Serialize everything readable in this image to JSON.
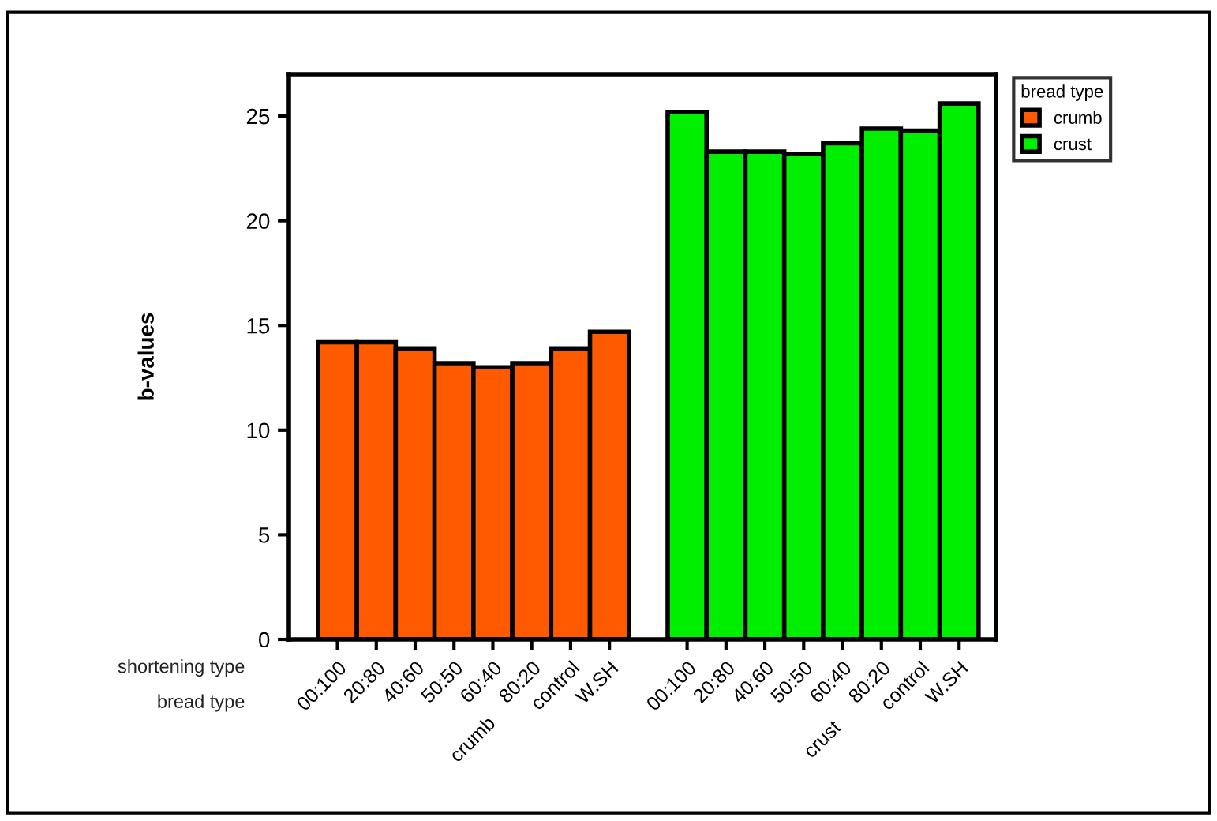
{
  "chart_data": {
    "type": "bar",
    "ylabel": "b-values",
    "legend_title": "bread type",
    "legend": "top right",
    "categories": [
      "00:100",
      "20:80",
      "40:60",
      "50:50",
      "60:40",
      "80:20",
      "control",
      "W.SH",
      null,
      "00:100",
      "20:80",
      "40:60",
      "50:50",
      "60:40",
      "80:20",
      "control",
      "W.SH"
    ],
    "series": [
      {
        "name": "crumb",
        "color": "#ff5a00",
        "values": [
          14.2,
          14.2,
          13.9,
          13.2,
          13.0,
          13.2,
          13.9,
          14.7,
          null,
          null,
          null,
          null,
          null,
          null,
          null,
          null,
          null
        ]
      },
      {
        "name": "crust",
        "color": "#00ee00",
        "values": [
          null,
          null,
          null,
          null,
          null,
          null,
          null,
          null,
          null,
          25.2,
          23.3,
          23.3,
          23.2,
          23.7,
          24.4,
          24.3,
          25.6
        ]
      }
    ],
    "ylim": [
      0,
      27
    ],
    "yticks": [
      0,
      5,
      10,
      15,
      20,
      25
    ],
    "grid": false,
    "annotations": [
      "shortening type",
      "bread type"
    ]
  }
}
